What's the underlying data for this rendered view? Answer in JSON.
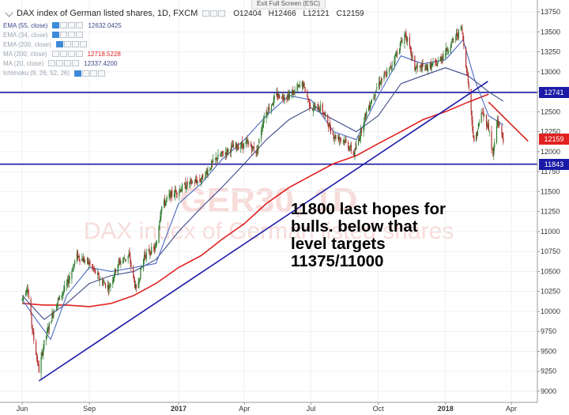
{
  "window": {
    "exit_fullscreen": "Exit Full Screen (ESC)"
  },
  "header": {
    "title": "DAX index of German listed shares, 1D, FXCM",
    "ohlc": {
      "open": "O12404",
      "high": "H12466",
      "low": "L12121",
      "close": "C12159"
    }
  },
  "indicators": [
    {
      "label": "EMA (55, close)",
      "value": "12632.0425",
      "color": "#3d4a8a",
      "value_color": "#3d4a8a",
      "blue_toggle": true
    },
    {
      "label": "EMA (34, close)",
      "value": "",
      "color": "#9aa4b0",
      "blue_toggle": true
    },
    {
      "label": "EMA (200, close)",
      "value": "",
      "color": "#9aa4b0",
      "blue_toggle": true
    },
    {
      "label": "MA (200, close)",
      "value": "12718.5228",
      "color": "#9aa4b0",
      "value_color": "#e0211f",
      "blue_toggle": false
    },
    {
      "label": "MA (20, close)",
      "value": "12337.4200",
      "color": "#9aa4b0",
      "value_color": "#3d4a8a",
      "blue_toggle": false
    },
    {
      "label": "Ichimoku (9, 26, 52, 26)",
      "value": "",
      "color": "#9aa4b0",
      "blue_toggle": true
    }
  ],
  "annotation": [
    "11800 last hopes for",
    "bulls. below that",
    "level targets",
    "11375/11000"
  ],
  "price_tags": [
    {
      "label": "12741",
      "value": 12741,
      "color": "#1a1aa6"
    },
    {
      "label": "12159",
      "value": 12159,
      "color": "#e0211f"
    },
    {
      "label": "11843",
      "value": 11843,
      "color": "#1a1aa6"
    }
  ],
  "chart_data": {
    "type": "candlestick",
    "title": "DAX index of German listed shares, 1D, FXCM",
    "ylim": [
      8900,
      13800
    ],
    "y_ticks": [
      9000,
      9250,
      9500,
      9750,
      10000,
      10250,
      10500,
      10750,
      11000,
      11250,
      11500,
      11750,
      12000,
      12250,
      12500,
      12750,
      13000,
      13250,
      13500,
      13750
    ],
    "x_range": [
      "2016-06-01",
      "2018-04-30"
    ],
    "x_ticks": [
      {
        "label": "Jun",
        "date": "2016-06-01",
        "bold": false
      },
      {
        "label": "Sep",
        "date": "2016-09-01",
        "bold": false
      },
      {
        "label": "2017",
        "date": "2017-01-01",
        "bold": true
      },
      {
        "label": "Apr",
        "date": "2017-04-01",
        "bold": false
      },
      {
        "label": "Jul",
        "date": "2017-07-01",
        "bold": false
      },
      {
        "label": "Oct",
        "date": "2017-10-01",
        "bold": false
      },
      {
        "label": "2018",
        "date": "2018-01-01",
        "bold": true
      },
      {
        "label": "Apr",
        "date": "2018-04-01",
        "bold": false
      }
    ],
    "price_path": [
      {
        "date": "2016-06-01",
        "close": 10150
      },
      {
        "date": "2016-06-08",
        "close": 10320
      },
      {
        "date": "2016-06-16",
        "close": 9700
      },
      {
        "date": "2016-06-24",
        "close": 9260
      },
      {
        "date": "2016-07-01",
        "close": 9600
      },
      {
        "date": "2016-07-15",
        "close": 10050
      },
      {
        "date": "2016-08-01",
        "close": 10330
      },
      {
        "date": "2016-08-15",
        "close": 10700
      },
      {
        "date": "2016-09-01",
        "close": 10600
      },
      {
        "date": "2016-09-15",
        "close": 10400
      },
      {
        "date": "2016-09-28",
        "close": 10300
      },
      {
        "date": "2016-10-10",
        "close": 10600
      },
      {
        "date": "2016-10-25",
        "close": 10700
      },
      {
        "date": "2016-11-04",
        "close": 10250
      },
      {
        "date": "2016-11-15",
        "close": 10700
      },
      {
        "date": "2016-12-01",
        "close": 10800
      },
      {
        "date": "2016-12-08",
        "close": 11300
      },
      {
        "date": "2016-12-20",
        "close": 11450
      },
      {
        "date": "2017-01-15",
        "close": 11600
      },
      {
        "date": "2017-02-01",
        "close": 11650
      },
      {
        "date": "2017-02-20",
        "close": 11900
      },
      {
        "date": "2017-03-15",
        "close": 12050
      },
      {
        "date": "2017-04-05",
        "close": 12100
      },
      {
        "date": "2017-04-18",
        "close": 12000
      },
      {
        "date": "2017-04-28",
        "close": 12450
      },
      {
        "date": "2017-05-15",
        "close": 12700
      },
      {
        "date": "2017-06-01",
        "close": 12700
      },
      {
        "date": "2017-06-20",
        "close": 12850
      },
      {
        "date": "2017-07-01",
        "close": 12550
      },
      {
        "date": "2017-07-15",
        "close": 12550
      },
      {
        "date": "2017-08-01",
        "close": 12200
      },
      {
        "date": "2017-08-15",
        "close": 12150
      },
      {
        "date": "2017-08-29",
        "close": 11970
      },
      {
        "date": "2017-09-15",
        "close": 12500
      },
      {
        "date": "2017-10-01",
        "close": 12850
      },
      {
        "date": "2017-10-15",
        "close": 13000
      },
      {
        "date": "2017-11-07",
        "close": 13480
      },
      {
        "date": "2017-11-20",
        "close": 13050
      },
      {
        "date": "2017-12-05",
        "close": 13050
      },
      {
        "date": "2017-12-20",
        "close": 13100
      },
      {
        "date": "2018-01-05",
        "close": 13300
      },
      {
        "date": "2018-01-23",
        "close": 13550
      },
      {
        "date": "2018-02-02",
        "close": 12800
      },
      {
        "date": "2018-02-09",
        "close": 12100
      },
      {
        "date": "2018-02-20",
        "close": 12500
      },
      {
        "date": "2018-03-01",
        "close": 12300
      },
      {
        "date": "2018-03-07",
        "close": 11950
      },
      {
        "date": "2018-03-13",
        "close": 12400
      },
      {
        "date": "2018-03-21",
        "close": 12159
      }
    ],
    "series": [
      {
        "name": "MA (200, close)",
        "color": "#e0211f",
        "points": [
          {
            "date": "2016-06-01",
            "y": 10100
          },
          {
            "date": "2016-07-01",
            "y": 10080
          },
          {
            "date": "2016-08-01",
            "y": 10080
          },
          {
            "date": "2016-09-01",
            "y": 10060
          },
          {
            "date": "2016-10-01",
            "y": 10100
          },
          {
            "date": "2016-11-01",
            "y": 10200
          },
          {
            "date": "2016-12-01",
            "y": 10350
          },
          {
            "date": "2017-01-01",
            "y": 10550
          },
          {
            "date": "2017-02-01",
            "y": 10700
          },
          {
            "date": "2017-03-01",
            "y": 10900
          },
          {
            "date": "2017-04-01",
            "y": 11100
          },
          {
            "date": "2017-05-01",
            "y": 11350
          },
          {
            "date": "2017-06-01",
            "y": 11550
          },
          {
            "date": "2017-07-01",
            "y": 11700
          },
          {
            "date": "2017-08-01",
            "y": 11850
          },
          {
            "date": "2017-09-01",
            "y": 11950
          },
          {
            "date": "2017-10-01",
            "y": 12100
          },
          {
            "date": "2017-11-01",
            "y": 12250
          },
          {
            "date": "2017-12-01",
            "y": 12400
          },
          {
            "date": "2018-01-01",
            "y": 12500
          },
          {
            "date": "2018-02-01",
            "y": 12620
          },
          {
            "date": "2018-03-01",
            "y": 12720
          }
        ]
      },
      {
        "name": "EMA (55, close)",
        "color": "#3d4a8a",
        "points": [
          {
            "date": "2016-06-01",
            "y": 10200
          },
          {
            "date": "2016-07-01",
            "y": 9900
          },
          {
            "date": "2016-08-01",
            "y": 10100
          },
          {
            "date": "2016-09-01",
            "y": 10350
          },
          {
            "date": "2016-10-01",
            "y": 10450
          },
          {
            "date": "2016-11-01",
            "y": 10500
          },
          {
            "date": "2016-12-01",
            "y": 10650
          },
          {
            "date": "2017-01-01",
            "y": 11000
          },
          {
            "date": "2017-02-01",
            "y": 11300
          },
          {
            "date": "2017-03-01",
            "y": 11550
          },
          {
            "date": "2017-04-01",
            "y": 11850
          },
          {
            "date": "2017-05-01",
            "y": 12150
          },
          {
            "date": "2017-06-01",
            "y": 12400
          },
          {
            "date": "2017-07-01",
            "y": 12550
          },
          {
            "date": "2017-08-01",
            "y": 12400
          },
          {
            "date": "2017-09-01",
            "y": 12250
          },
          {
            "date": "2017-10-01",
            "y": 12450
          },
          {
            "date": "2017-11-01",
            "y": 12850
          },
          {
            "date": "2017-12-01",
            "y": 12950
          },
          {
            "date": "2018-01-01",
            "y": 13050
          },
          {
            "date": "2018-02-01",
            "y": 12950
          },
          {
            "date": "2018-03-01",
            "y": 12750
          },
          {
            "date": "2018-03-21",
            "y": 12632
          }
        ]
      },
      {
        "name": "MA (20, close)",
        "color": "#4a6ac0",
        "points": [
          {
            "date": "2016-06-01",
            "y": 10150
          },
          {
            "date": "2016-06-20",
            "y": 9900
          },
          {
            "date": "2016-07-10",
            "y": 9650
          },
          {
            "date": "2016-08-01",
            "y": 10200
          },
          {
            "date": "2016-09-01",
            "y": 10550
          },
          {
            "date": "2016-10-01",
            "y": 10500
          },
          {
            "date": "2016-11-01",
            "y": 10550
          },
          {
            "date": "2016-12-01",
            "y": 10600
          },
          {
            "date": "2017-01-01",
            "y": 11350
          },
          {
            "date": "2017-02-01",
            "y": 11600
          },
          {
            "date": "2017-03-01",
            "y": 11900
          },
          {
            "date": "2017-04-01",
            "y": 12150
          },
          {
            "date": "2017-05-01",
            "y": 12450
          },
          {
            "date": "2017-06-01",
            "y": 12700
          },
          {
            "date": "2017-07-01",
            "y": 12650
          },
          {
            "date": "2017-08-01",
            "y": 12250
          },
          {
            "date": "2017-09-01",
            "y": 12150
          },
          {
            "date": "2017-10-01",
            "y": 12700
          },
          {
            "date": "2017-11-01",
            "y": 13200
          },
          {
            "date": "2017-12-01",
            "y": 13100
          },
          {
            "date": "2018-01-01",
            "y": 13150
          },
          {
            "date": "2018-01-25",
            "y": 13400
          },
          {
            "date": "2018-02-10",
            "y": 12900
          },
          {
            "date": "2018-03-01",
            "y": 12450
          },
          {
            "date": "2018-03-21",
            "y": 12337
          }
        ]
      }
    ],
    "trendlines": [
      {
        "name": "rising support",
        "color": "#1a1aa6",
        "from": {
          "date": "2016-06-24",
          "y": 9130
        },
        "to": {
          "date": "2018-02-28",
          "y": 12880
        }
      },
      {
        "name": "falling resistance",
        "color": "#e0211f",
        "from": {
          "date": "2018-03-01",
          "y": 12620
        },
        "to": {
          "date": "2018-04-24",
          "y": 12130
        }
      }
    ],
    "levels": [
      {
        "value": 12741,
        "color": "#1a1aa6"
      },
      {
        "value": 11843,
        "color": "#1a1aa6"
      }
    ],
    "watermark": [
      "GER30, 1D",
      "DAX index of German listed shares"
    ]
  }
}
